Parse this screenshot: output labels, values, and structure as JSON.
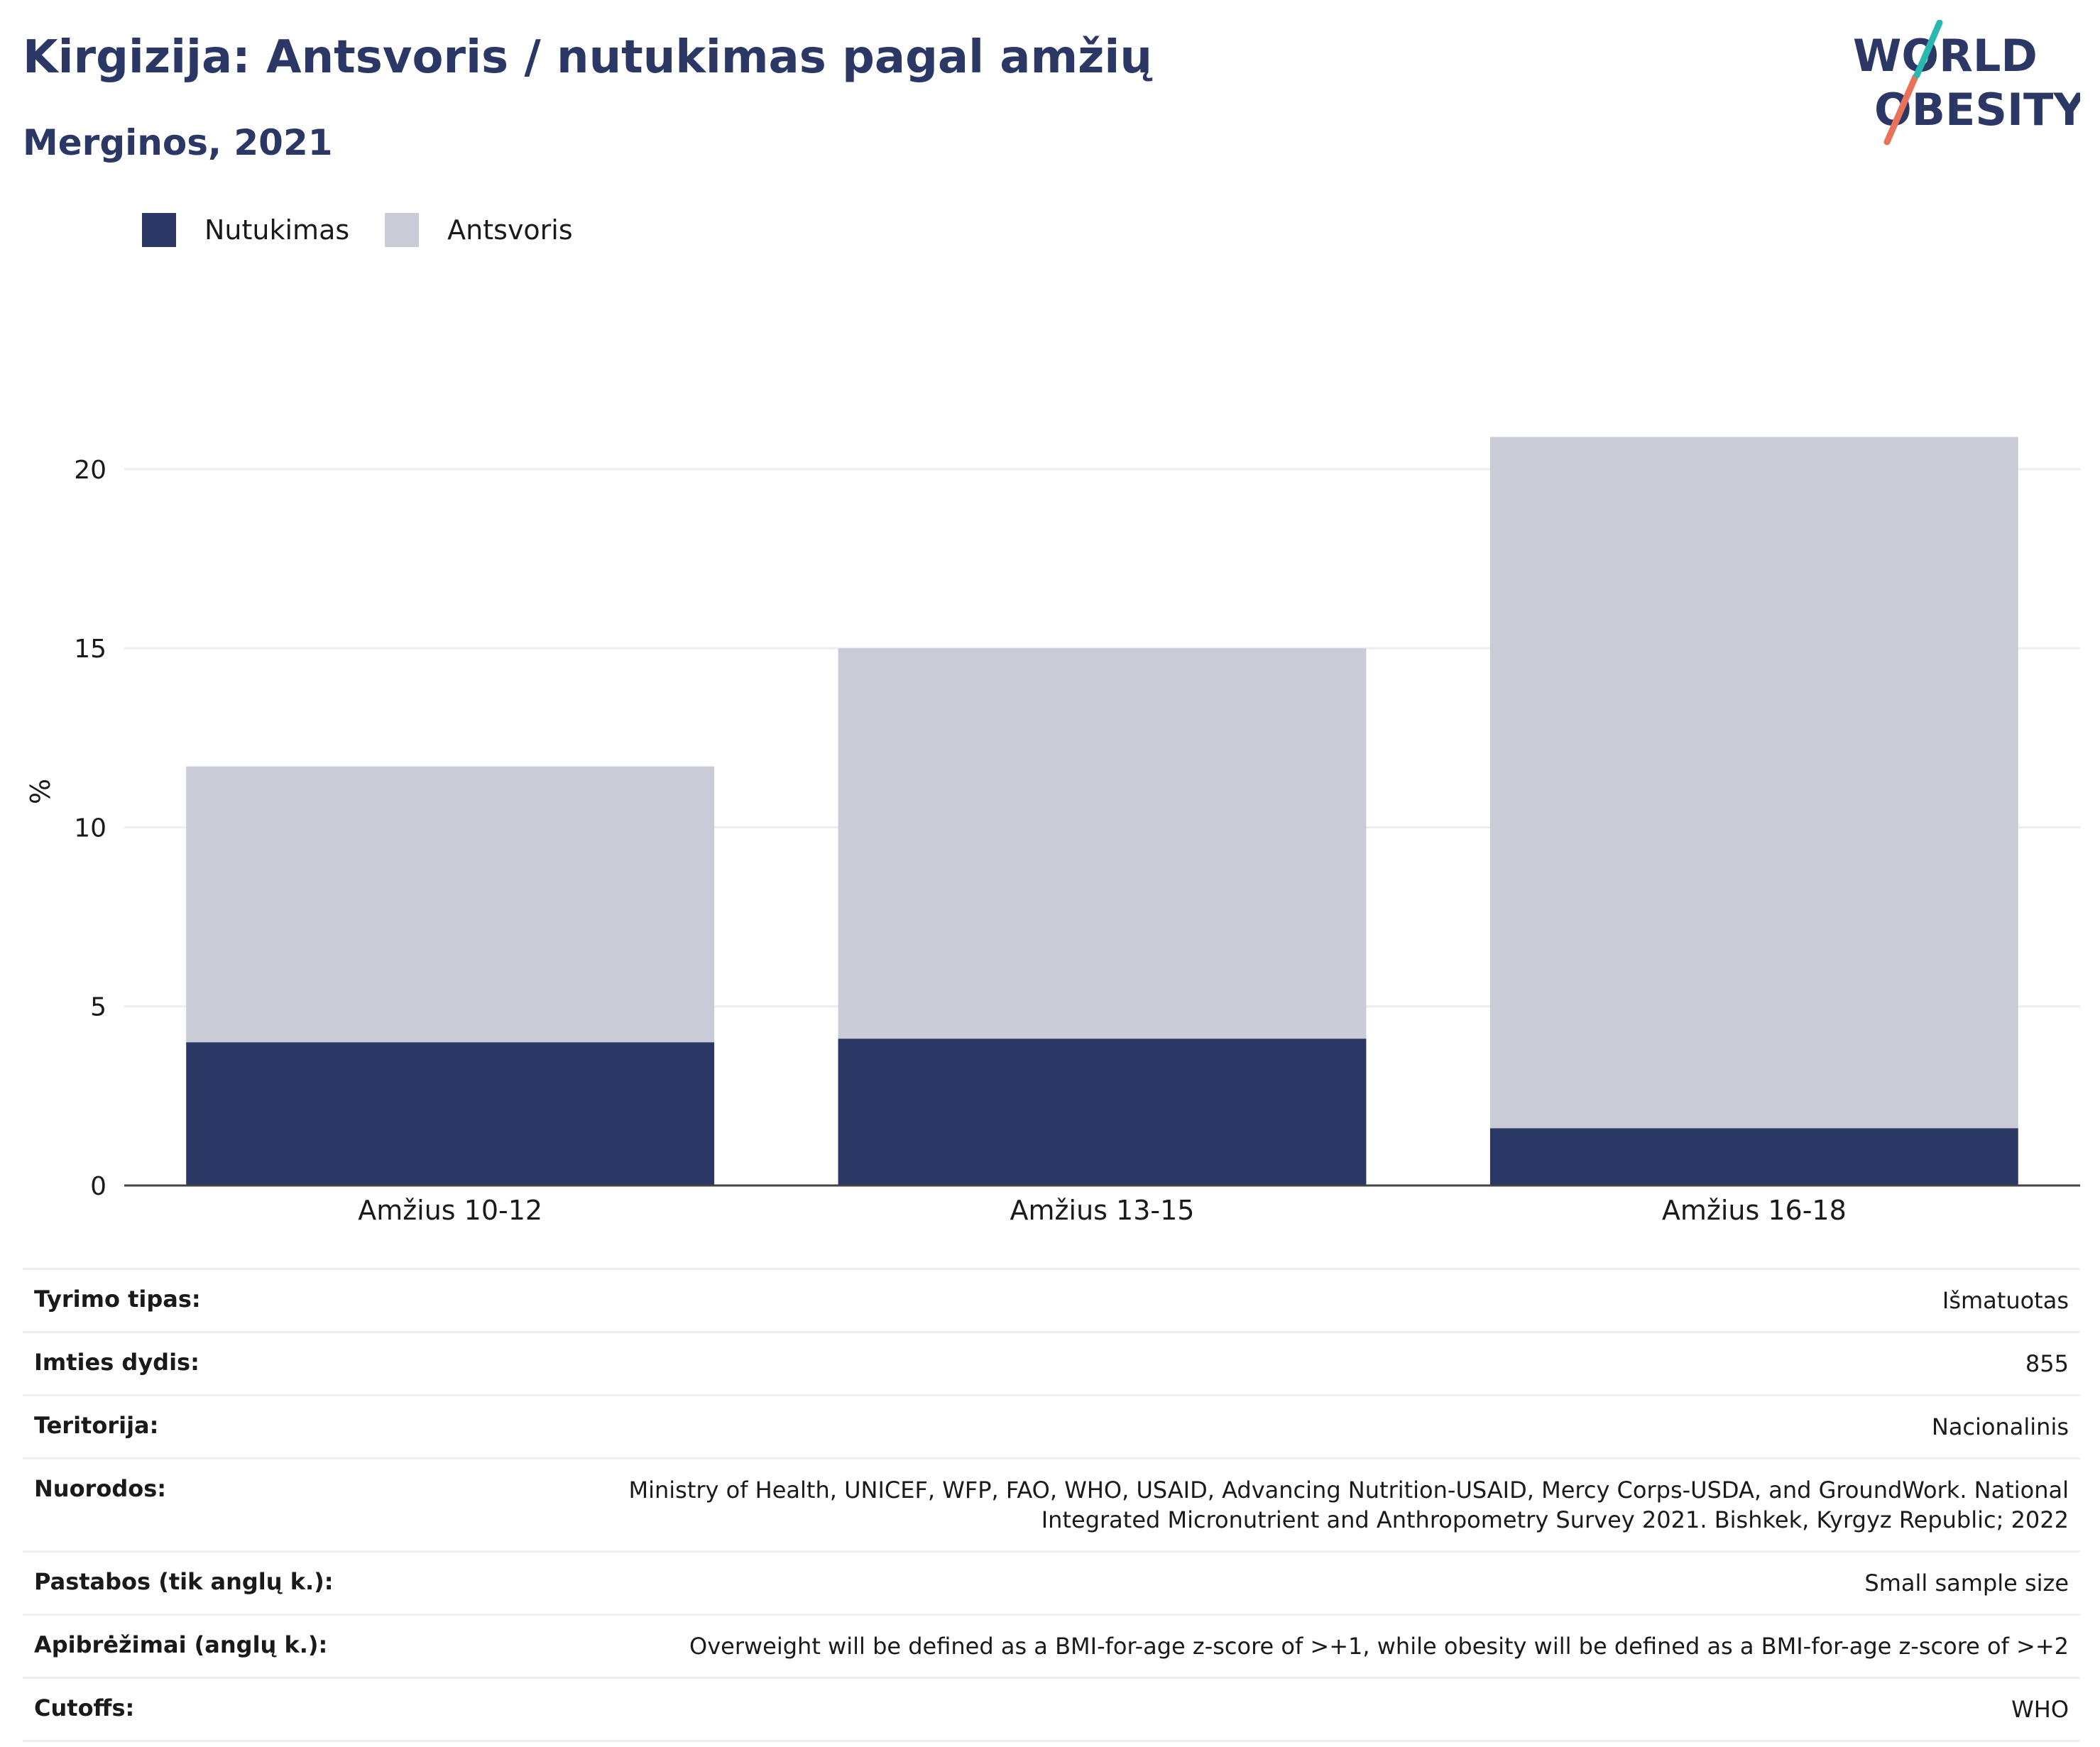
{
  "header": {
    "title": "Kirgizija: Antsvoris / nutukimas pagal amžių",
    "subtitle": "Merginos, 2021",
    "logo_line1": "WORLD",
    "logo_line2": "OBESITY"
  },
  "colors": {
    "obesity": "#2b3765",
    "overweight": "#c9cbd7",
    "title": "#2b3765",
    "logo_teal": "#2ab7b0",
    "logo_coral": "#e8735a"
  },
  "legend": [
    {
      "label": "Nutukimas",
      "color": "#2b3765"
    },
    {
      "label": "Antsvoris",
      "color": "#c9cbd7"
    }
  ],
  "chart_data": {
    "type": "bar",
    "stacked": true,
    "categories": [
      "Amžius 10-12",
      "Amžius 13-15",
      "Amžius 16-18"
    ],
    "series": [
      {
        "name": "Nutukimas",
        "values": [
          4.0,
          4.1,
          1.6
        ],
        "color": "#2b3765"
      },
      {
        "name": "Antsvoris",
        "values": [
          7.7,
          10.9,
          19.3
        ],
        "color": "#c9cbd7"
      }
    ],
    "ylabel": "%",
    "yticks": [
      0,
      5,
      10,
      15,
      20
    ],
    "ylim": [
      0,
      22
    ],
    "grid": true,
    "legend_position": "top-left"
  },
  "info": [
    {
      "label": "Tyrimo tipas:",
      "value": "Išmatuotas"
    },
    {
      "label": "Imties dydis:",
      "value": "855"
    },
    {
      "label": "Teritorija:",
      "value": "Nacionalinis"
    },
    {
      "label": "Nuorodos:",
      "value": "Ministry of Health, UNICEF, WFP, FAO, WHO, USAID, Advancing Nutrition-USAID, Mercy Corps-USDA, and GroundWork. National Integrated Micronutrient and Anthropometry Survey 2021. Bishkek, Kyrgyz Republic; 2022"
    },
    {
      "label": "Pastabos (tik anglų k.):",
      "value": "Small sample size"
    },
    {
      "label": "Apibrėžimai (anglų k.):",
      "value": "Overweight will be defined as a BMI-for-age z-score of >+1, while obesity will be defined as a BMI-for-age z-score of >+2"
    },
    {
      "label": "Cutoffs:",
      "value": "WHO"
    }
  ]
}
